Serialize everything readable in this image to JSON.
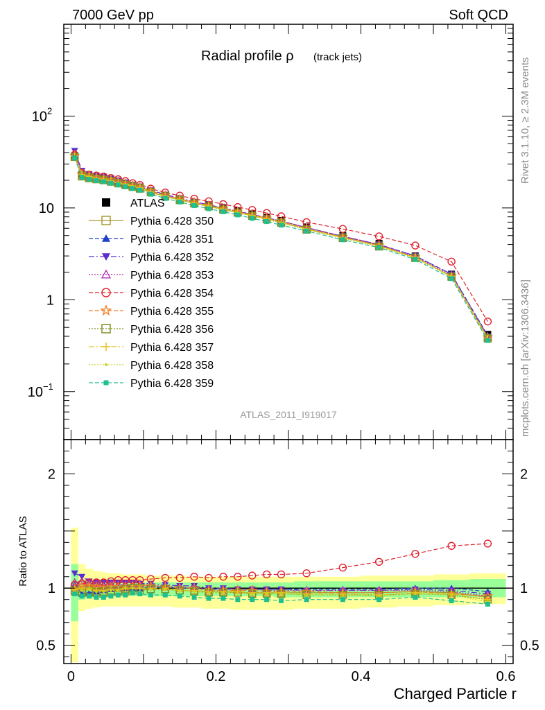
{
  "header": {
    "left": "7000 GeV pp",
    "right": "Soft QCD"
  },
  "side_labels": {
    "top": "Rivet 3.1.10, ≥ 2.3M events",
    "bottom": "mcplots.cern.ch [arXiv:1306.3436]"
  },
  "chart_data": [
    {
      "type": "line",
      "title": "Radial profile ρ",
      "title_suffix": "(track jets)",
      "watermark": "ATLAS_2011_I919017",
      "xlim": [
        -0.01,
        0.61
      ],
      "ylim": [
        0.03,
        1000
      ],
      "yscale": "log",
      "yticks": [
        {
          "v": 0.1,
          "base": "10",
          "exp": "−1"
        },
        {
          "v": 1,
          "base": "1",
          "exp": ""
        },
        {
          "v": 10,
          "base": "10",
          "exp": ""
        },
        {
          "v": 100,
          "base": "10",
          "exp": "2"
        }
      ],
      "x": [
        0.005,
        0.015,
        0.025,
        0.035,
        0.045,
        0.055,
        0.065,
        0.075,
        0.085,
        0.095,
        0.11,
        0.13,
        0.15,
        0.17,
        0.19,
        0.21,
        0.23,
        0.25,
        0.27,
        0.29,
        0.325,
        0.375,
        0.425,
        0.475,
        0.525,
        0.575
      ],
      "series": [
        {
          "name": "ATLAS",
          "color": "#000000",
          "marker": "square-filled",
          "dash": "none",
          "values": [
            37,
            23,
            22,
            21.5,
            21,
            20,
            19,
            18,
            17,
            16.5,
            15,
            13.5,
            12.5,
            11.5,
            10.8,
            10,
            9.3,
            8.6,
            7.9,
            7.3,
            6.2,
            5,
            4.1,
            3,
            1.9,
            0.42
          ]
        },
        {
          "name": "Pythia 6.428 350",
          "color": "#a59b2e",
          "marker": "square-open",
          "dash": "solid",
          "values": [
            36,
            22,
            21,
            20.5,
            20,
            19.3,
            18.5,
            17.7,
            16.9,
            16.2,
            14.8,
            13.3,
            12.2,
            11.2,
            10.4,
            9.6,
            8.9,
            8.2,
            7.6,
            7,
            5.9,
            4.8,
            3.9,
            2.9,
            1.8,
            0.38
          ]
        },
        {
          "name": "Pythia 6.428 351",
          "color": "#1f3fc7",
          "marker": "triangle-up-filled",
          "dash": "6,3",
          "values": [
            38,
            24,
            22.5,
            21.5,
            21,
            20.2,
            19.3,
            18.4,
            17.5,
            16.8,
            15.3,
            13.7,
            12.5,
            11.5,
            10.7,
            9.9,
            9.2,
            8.5,
            7.8,
            7.2,
            6.1,
            4.9,
            4,
            3,
            1.9,
            0.41
          ]
        },
        {
          "name": "Pythia 6.428 352",
          "color": "#5b2ccf",
          "marker": "triangle-down-filled",
          "dash": "8,3,2,3",
          "values": [
            42,
            25.5,
            23.5,
            22.5,
            22,
            21,
            20,
            19,
            18,
            17.2,
            15.6,
            14,
            12.8,
            11.7,
            10.8,
            10,
            9.2,
            8.5,
            7.8,
            7.2,
            6.1,
            4.9,
            4,
            3,
            1.9,
            0.4
          ]
        },
        {
          "name": "Pythia 6.428 353",
          "color": "#b02cb0",
          "marker": "triangle-up-open",
          "dash": "2,2",
          "values": [
            39,
            24.5,
            23,
            22,
            21.5,
            20.5,
            19.6,
            18.7,
            17.8,
            17,
            15.4,
            13.8,
            12.6,
            11.6,
            10.7,
            9.9,
            9.2,
            8.5,
            7.8,
            7.2,
            6.1,
            4.9,
            4,
            2.95,
            1.85,
            0.39
          ]
        },
        {
          "name": "Pythia 6.428 354",
          "color": "#e0212d",
          "marker": "circle-open",
          "dash": "6,3",
          "values": [
            38,
            24,
            23,
            22.5,
            22,
            21.2,
            20.5,
            19.6,
            18.6,
            17.8,
            16.2,
            14.7,
            13.6,
            12.6,
            11.8,
            11,
            10.2,
            9.5,
            8.8,
            8.1,
            7,
            5.9,
            4.9,
            3.9,
            2.6,
            0.58
          ]
        },
        {
          "name": "Pythia 6.428 355",
          "color": "#f07d24",
          "marker": "star-open",
          "dash": "6,3",
          "values": [
            37,
            23.5,
            22.5,
            21.5,
            21,
            20.2,
            19.4,
            18.5,
            17.6,
            16.9,
            15.3,
            13.7,
            12.5,
            11.5,
            10.6,
            9.8,
            9.1,
            8.4,
            7.7,
            7.1,
            6,
            4.8,
            3.9,
            2.9,
            1.8,
            0.39
          ]
        },
        {
          "name": "Pythia 6.428 356",
          "color": "#7f8f1f",
          "marker": "square-open",
          "dash": "2,2",
          "values": [
            36,
            22.5,
            21.5,
            20.8,
            20.3,
            19.5,
            18.7,
            17.9,
            17.1,
            16.4,
            14.9,
            13.4,
            12.2,
            11.2,
            10.4,
            9.6,
            8.9,
            8.2,
            7.5,
            6.9,
            5.8,
            4.7,
            3.8,
            2.85,
            1.78,
            0.38
          ]
        },
        {
          "name": "Pythia 6.428 357",
          "color": "#e8c21a",
          "marker": "plus",
          "dash": "8,3,2,3",
          "values": [
            36.5,
            23,
            22,
            21,
            20.5,
            19.7,
            18.9,
            18.1,
            17.3,
            16.6,
            15,
            13.5,
            12.3,
            11.3,
            10.5,
            9.7,
            9,
            8.3,
            7.6,
            7,
            5.9,
            4.75,
            3.85,
            2.9,
            1.8,
            0.38
          ]
        },
        {
          "name": "Pythia 6.428 358",
          "color": "#c8d21e",
          "marker": "dot",
          "dash": "2,2",
          "values": [
            36,
            22.8,
            21.8,
            20.9,
            20.4,
            19.6,
            18.8,
            18,
            17.2,
            16.5,
            14.9,
            13.4,
            12.2,
            11.2,
            10.4,
            9.6,
            8.9,
            8.2,
            7.5,
            6.9,
            5.85,
            4.7,
            3.8,
            2.85,
            1.78,
            0.37
          ]
        },
        {
          "name": "Pythia 6.428 359",
          "color": "#1fbf8f",
          "marker": "square-filled-small",
          "dash": "6,3",
          "values": [
            35,
            21.5,
            20.5,
            19.8,
            19.3,
            18.6,
            17.8,
            17,
            16.3,
            15.6,
            14.1,
            12.7,
            11.6,
            10.6,
            9.8,
            9.1,
            8.4,
            7.7,
            7.1,
            6.5,
            5.6,
            4.5,
            3.7,
            2.75,
            1.7,
            0.36
          ]
        }
      ]
    },
    {
      "type": "line",
      "ylabel": "Ratio to ATLAS",
      "xlabel": "Charged Particle r",
      "xlim": [
        -0.01,
        0.61
      ],
      "ylim": [
        0.34,
        2.3
      ],
      "yticks": [
        0.5,
        1,
        2
      ],
      "xticks": [
        "0",
        "0.2",
        "0.4",
        "0.6"
      ],
      "xtick_values": [
        0,
        0.2,
        0.4,
        0.6
      ],
      "band_yellow": {
        "lo": [
          0.35,
          0.8,
          0.82,
          0.83,
          0.84,
          0.84,
          0.84,
          0.84,
          0.84,
          0.84,
          0.84,
          0.84,
          0.83,
          0.83,
          0.82,
          0.82,
          0.81,
          0.81,
          0.81,
          0.81,
          0.82,
          0.82,
          0.83,
          0.84,
          0.85,
          0.86
        ],
        "hi": [
          1.53,
          1.21,
          1.17,
          1.15,
          1.14,
          1.13,
          1.13,
          1.12,
          1.12,
          1.12,
          1.11,
          1.11,
          1.11,
          1.1,
          1.1,
          1.1,
          1.1,
          1.1,
          1.1,
          1.1,
          1.1,
          1.1,
          1.11,
          1.11,
          1.12,
          1.13
        ]
      },
      "band_green": {
        "lo": [
          0.71,
          0.9,
          0.91,
          0.92,
          0.92,
          0.93,
          0.93,
          0.93,
          0.93,
          0.93,
          0.93,
          0.93,
          0.93,
          0.93,
          0.93,
          0.93,
          0.93,
          0.93,
          0.93,
          0.92,
          0.92,
          0.92,
          0.92,
          0.92,
          0.92,
          0.92
        ],
        "hi": [
          1.21,
          1.07,
          1.06,
          1.06,
          1.06,
          1.05,
          1.05,
          1.05,
          1.05,
          1.05,
          1.05,
          1.05,
          1.05,
          1.05,
          1.05,
          1.05,
          1.05,
          1.05,
          1.05,
          1.05,
          1.06,
          1.06,
          1.06,
          1.06,
          1.07,
          1.08
        ]
      },
      "ratios": [
        [
          1,
          1,
          1,
          1,
          1,
          1,
          1,
          1,
          1,
          1,
          1,
          1,
          1,
          1,
          1,
          1,
          1,
          1,
          1,
          1,
          1,
          1,
          1,
          1,
          1,
          1
        ],
        [
          0.97,
          0.96,
          0.96,
          0.96,
          0.96,
          0.97,
          0.97,
          0.97,
          0.98,
          0.98,
          0.99,
          0.99,
          0.98,
          0.98,
          0.97,
          0.97,
          0.96,
          0.96,
          0.96,
          0.96,
          0.96,
          0.96,
          0.96,
          0.97,
          0.96,
          0.92
        ],
        [
          1.03,
          0.95,
          0.96,
          0.97,
          0.98,
          0.99,
          1,
          1,
          1,
          1,
          1.01,
          1.01,
          1,
          1,
          0.99,
          0.99,
          0.99,
          0.99,
          0.99,
          0.99,
          0.99,
          0.99,
          0.99,
          1,
          1,
          0.97
        ],
        [
          1.13,
          1.1,
          1.06,
          1.05,
          1.05,
          1.05,
          1.05,
          1.05,
          1.05,
          1.04,
          1.04,
          1.03,
          1.02,
          1.02,
          1,
          1,
          0.99,
          0.99,
          0.99,
          0.99,
          0.98,
          0.98,
          0.98,
          0.99,
          0.98,
          0.95
        ],
        [
          1.05,
          1.06,
          1.04,
          1.04,
          1.03,
          1.03,
          1.03,
          1.03,
          1.03,
          1.03,
          1.02,
          1.02,
          1.01,
          1,
          0.99,
          0.99,
          0.99,
          0.99,
          0.98,
          0.98,
          0.98,
          0.98,
          0.98,
          0.98,
          0.97,
          0.93
        ],
        [
          1.03,
          1.04,
          1.05,
          1.05,
          1.05,
          1.06,
          1.07,
          1.07,
          1.07,
          1.07,
          1.08,
          1.09,
          1.09,
          1.1,
          1.09,
          1.1,
          1.1,
          1.11,
          1.12,
          1.12,
          1.13,
          1.18,
          1.23,
          1.3,
          1.37,
          1.39
        ],
        [
          1,
          1.02,
          1.02,
          1.01,
          1,
          1.01,
          1.01,
          1.01,
          1.02,
          1.02,
          1.02,
          1.01,
          1,
          1,
          0.98,
          0.98,
          0.98,
          0.98,
          0.97,
          0.97,
          0.97,
          0.96,
          0.96,
          0.97,
          0.95,
          0.93
        ],
        [
          0.98,
          0.97,
          0.98,
          0.97,
          0.97,
          0.98,
          0.98,
          0.99,
          1,
          1,
          0.99,
          0.99,
          0.98,
          0.97,
          0.96,
          0.96,
          0.96,
          0.95,
          0.95,
          0.95,
          0.94,
          0.94,
          0.94,
          0.95,
          0.94,
          0.9
        ],
        [
          0.99,
          1,
          1,
          0.98,
          0.98,
          0.99,
          0.99,
          1,
          1,
          1,
          1,
          1,
          0.98,
          0.98,
          0.97,
          0.97,
          0.97,
          0.96,
          0.96,
          0.96,
          0.95,
          0.95,
          0.94,
          0.96,
          0.95,
          0.9
        ],
        [
          0.97,
          0.98,
          0.99,
          0.97,
          0.97,
          0.98,
          0.98,
          1,
          1,
          1,
          0.99,
          0.99,
          0.98,
          0.97,
          0.96,
          0.96,
          0.96,
          0.95,
          0.95,
          0.95,
          0.94,
          0.94,
          0.93,
          0.95,
          0.94,
          0.88
        ],
        [
          0.95,
          0.93,
          0.93,
          0.92,
          0.92,
          0.93,
          0.94,
          0.94,
          0.96,
          0.95,
          0.94,
          0.94,
          0.93,
          0.92,
          0.91,
          0.91,
          0.9,
          0.9,
          0.9,
          0.89,
          0.9,
          0.9,
          0.9,
          0.92,
          0.89,
          0.86
        ]
      ]
    }
  ]
}
